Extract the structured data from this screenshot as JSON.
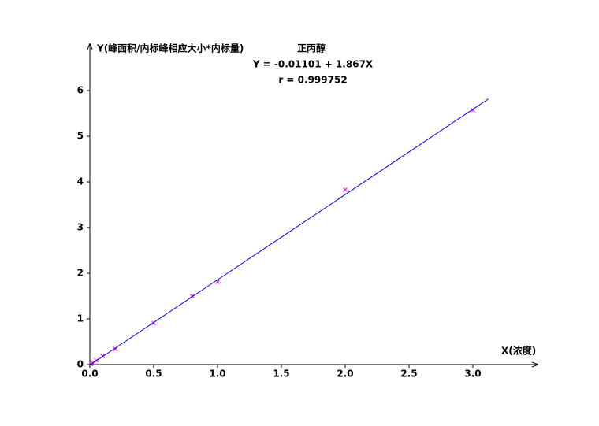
{
  "chart_data": {
    "type": "scatter",
    "title": "正丙醇",
    "y_label": "Y(峰面积/内标峰相应大小*内标量)",
    "x_label": "X(浓度)",
    "annotations": [
      "Y = -0.01101 + 1.867X",
      "r = 0.999752"
    ],
    "xlim": [
      0,
      3.5
    ],
    "ylim": [
      0,
      7
    ],
    "xticks": [
      {
        "value": 0,
        "label": "0.0"
      },
      0.5,
      {
        "value": 1,
        "label": "1.0"
      },
      1.5,
      {
        "value": 2,
        "label": "2.0"
      },
      2.5,
      {
        "value": 3,
        "label": "3.0"
      }
    ],
    "yticks": [
      0,
      1,
      2,
      3,
      4,
      5,
      6
    ],
    "grid": false,
    "series": [
      {
        "color": "#ff00ff",
        "x": [
          0.01,
          0.02,
          0.05,
          0.1,
          0.2,
          0.5,
          0.8,
          1.0,
          2.0,
          3.0
        ],
        "values": [
          0.01,
          0.04,
          0.09,
          0.19,
          0.34,
          0.91,
          1.5,
          1.81,
          3.83,
          5.57
        ]
      },
      {
        "color": "#0000ff",
        "line": true,
        "x": [
          0,
          3.12
        ],
        "values": [
          -0.011,
          5.814
        ]
      }
    ]
  }
}
